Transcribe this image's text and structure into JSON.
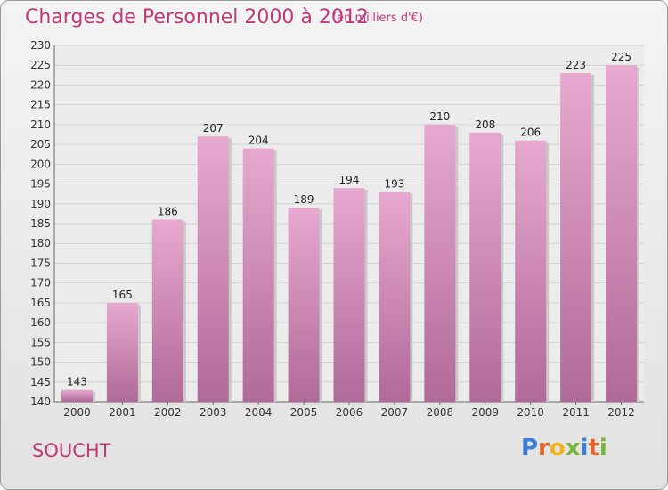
{
  "header": {
    "title": "Charges de Personnel 2000 à 2012",
    "subtitle": "(en milliers d'€)"
  },
  "footer": {
    "commune": "SOUCHT",
    "logo": "Proxiti",
    "logo_colors": [
      "#3d7fd6",
      "#e8622a",
      "#f3b21a",
      "#7ab63a",
      "#3d7fd6",
      "#e8622a",
      "#7ab63a"
    ]
  },
  "chart_data": {
    "type": "bar",
    "categories": [
      "2000",
      "2001",
      "2002",
      "2003",
      "2004",
      "2005",
      "2006",
      "2007",
      "2008",
      "2009",
      "2010",
      "2011",
      "2012"
    ],
    "values": [
      143,
      165,
      186,
      207,
      204,
      189,
      194,
      193,
      210,
      208,
      206,
      223,
      225
    ],
    "title": "Charges de Personnel 2000 à 2012",
    "subtitle": "(en milliers d'€)",
    "xlabel": "",
    "ylabel": "",
    "ylim": [
      140,
      230
    ],
    "yticks": [
      140,
      145,
      150,
      155,
      160,
      165,
      170,
      175,
      180,
      185,
      190,
      195,
      200,
      205,
      210,
      215,
      220,
      225,
      230
    ],
    "grid": true,
    "bar_color": "#d48fb8"
  }
}
